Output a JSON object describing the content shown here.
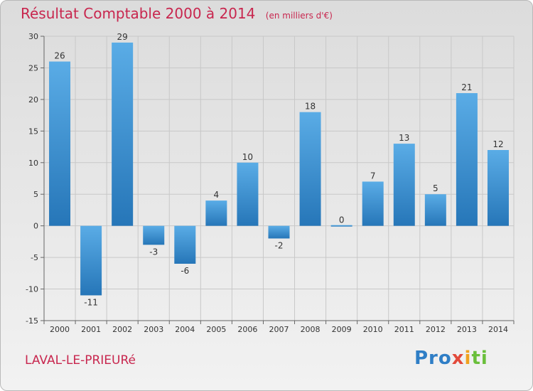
{
  "chart_data": {
    "type": "bar",
    "title": "Résultat Comptable 2000 à 2014",
    "subtitle": "(en milliers d'€)",
    "categories": [
      "2000",
      "2001",
      "2002",
      "2003",
      "2004",
      "2005",
      "2006",
      "2007",
      "2008",
      "2009",
      "2010",
      "2011",
      "2012",
      "2013",
      "2014"
    ],
    "values": [
      26,
      -11,
      29,
      -3,
      -6,
      4,
      10,
      -2,
      18,
      0,
      7,
      13,
      5,
      21,
      12
    ],
    "data_labels": [
      "26",
      "-11",
      "29",
      "-3",
      "-6",
      "4",
      "10",
      "-2",
      "18",
      "0",
      "7",
      "13",
      "5",
      "21",
      "12"
    ],
    "ylim": [
      -15,
      30
    ],
    "yticks": [
      -15,
      -10,
      -5,
      0,
      5,
      10,
      15,
      20,
      25,
      30
    ],
    "xlabel": "",
    "ylabel": "",
    "grid": true,
    "legend": "none"
  },
  "footer": {
    "commune": "LAVAL-LE-PRIEURé",
    "logo": {
      "p1": "Pro",
      "p2": "x",
      "p3": "i",
      "p4": "ti"
    }
  },
  "colors": {
    "bar_light": "#5aace6",
    "bar_dark": "#2676b8",
    "title": "#c8264e"
  }
}
